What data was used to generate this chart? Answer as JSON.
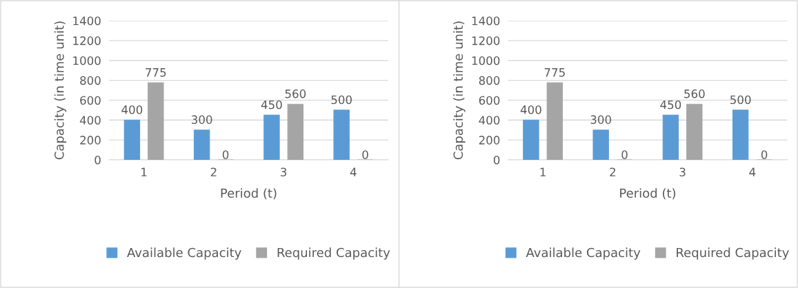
{
  "chart_data": [
    {
      "type": "bar",
      "xlabel": "Period (t)",
      "ylabel": "Capacity (in time unit)",
      "categories": [
        "1",
        "2",
        "3",
        "4"
      ],
      "series": [
        {
          "name": "Available Capacity",
          "color": "#5b9bd5",
          "values": [
            400,
            300,
            450,
            500
          ]
        },
        {
          "name": "Required Capacity",
          "color": "#a5a5a5",
          "values": [
            775,
            0,
            560,
            0
          ]
        }
      ],
      "ylim": [
        0,
        1400
      ],
      "yticks": [
        0,
        200,
        400,
        600,
        800,
        1000,
        1200,
        1400
      ],
      "grid": "y",
      "legend": "bottom",
      "data_labels": true
    },
    {
      "type": "bar",
      "xlabel": "Period (t)",
      "ylabel": "Capacity (in time unit)",
      "categories": [
        "1",
        "2",
        "3",
        "4"
      ],
      "series": [
        {
          "name": "Available Capacity",
          "color": "#5b9bd5",
          "values": [
            400,
            300,
            450,
            500
          ]
        },
        {
          "name": "Required Capacity",
          "color": "#a5a5a5",
          "values": [
            775,
            0,
            560,
            0
          ]
        }
      ],
      "ylim": [
        0,
        1400
      ],
      "yticks": [
        0,
        200,
        400,
        600,
        800,
        1000,
        1200,
        1400
      ],
      "grid": "y",
      "legend": "bottom",
      "data_labels": true
    }
  ]
}
